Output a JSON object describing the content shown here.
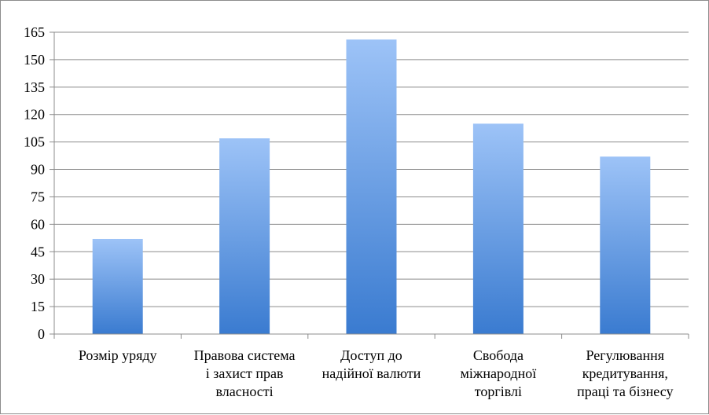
{
  "chart_data": {
    "type": "bar",
    "title": "",
    "xlabel": "",
    "ylabel": "",
    "ylim": [
      0,
      165
    ],
    "yticks": [
      0,
      15,
      30,
      45,
      60,
      75,
      90,
      105,
      120,
      135,
      150,
      165
    ],
    "grid": true,
    "legend": "none",
    "categories": [
      "Розмір уряду",
      "Правова система і захист прав власності",
      "Доступ до надійної валюти",
      "Свобода міжнародної торгівлі",
      "Регулювання кредитування, праці та бізнесу"
    ],
    "category_lines": [
      [
        "Розмір уряду"
      ],
      [
        "Правова система",
        "і захист прав",
        "власності"
      ],
      [
        "Доступ до",
        "надійної валюти"
      ],
      [
        "Свобода",
        "міжнародної",
        "торгівлі"
      ],
      [
        "Регулювання",
        "кредитування,",
        "праці та бізнесу"
      ]
    ],
    "values": [
      52,
      107,
      161,
      115,
      97
    ],
    "colors": {
      "bar_top": "#9dc3f7",
      "bar_bottom": "#3a7bd0",
      "grid": "#8c8c8c",
      "axis": "#8c8c8c"
    }
  }
}
